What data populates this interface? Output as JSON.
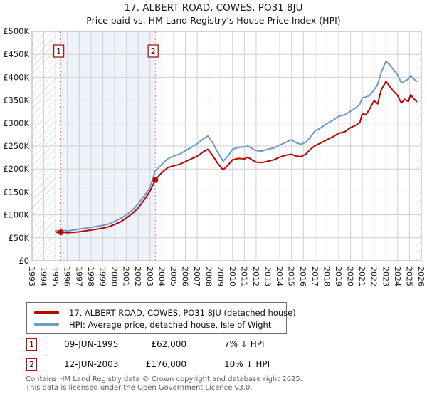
{
  "header": {
    "title": "17, ALBERT ROAD, COWES, PO31 8JU",
    "subtitle": "Price paid vs. HM Land Registry's House Price Index (HPI)"
  },
  "chart_data": {
    "type": "line",
    "title": "17, ALBERT ROAD, COWES, PO31 8JU",
    "subtitle": "Price paid vs. HM Land Registry's House Price Index (HPI)",
    "grid": true,
    "legend_position": "bottom",
    "x_axis": {
      "min": 1993,
      "max": 2026,
      "ticks": [
        1993,
        1994,
        1995,
        1996,
        1997,
        1998,
        1999,
        2000,
        2001,
        2002,
        2003,
        2004,
        2005,
        2006,
        2007,
        2008,
        2009,
        2010,
        2011,
        2012,
        2013,
        2014,
        2015,
        2016,
        2017,
        2018,
        2019,
        2020,
        2021,
        2022,
        2023,
        2024,
        2025,
        2026
      ]
    },
    "y_axis": {
      "min": 0,
      "max": 500000,
      "ticks": [
        {
          "value": 0,
          "label": "£0"
        },
        {
          "value": 50000,
          "label": "£50K"
        },
        {
          "value": 100000,
          "label": "£100K"
        },
        {
          "value": 150000,
          "label": "£150K"
        },
        {
          "value": 200000,
          "label": "£200K"
        },
        {
          "value": 250000,
          "label": "£250K"
        },
        {
          "value": 300000,
          "label": "£300K"
        },
        {
          "value": 350000,
          "label": "£350K"
        },
        {
          "value": 400000,
          "label": "£400K"
        },
        {
          "value": 450000,
          "label": "£450K"
        },
        {
          "value": 500000,
          "label": "£500K"
        }
      ]
    },
    "data_start_year": 1995.0,
    "data_end_year": 2025.6,
    "shaded_region": [
      1995.45,
      2003.45
    ],
    "x": [
      1995.0,
      1995.25,
      1995.45,
      1995.75,
      1996.0,
      1996.5,
      1997.0,
      1997.5,
      1998.0,
      1998.5,
      1999.0,
      1999.5,
      2000.0,
      2000.5,
      2001.0,
      2001.5,
      2002.0,
      2002.5,
      2003.0,
      2003.45,
      2004.0,
      2004.5,
      2005.0,
      2005.5,
      2006.0,
      2006.5,
      2007.0,
      2007.5,
      2007.9,
      2008.3,
      2008.7,
      2009.2,
      2009.6,
      2010.0,
      2010.5,
      2011.0,
      2011.3,
      2011.7,
      2012.0,
      2012.5,
      2013.0,
      2013.5,
      2014.0,
      2014.5,
      2015.0,
      2015.4,
      2015.8,
      2016.2,
      2016.6,
      2017.0,
      2017.5,
      2018.0,
      2018.5,
      2019.0,
      2019.5,
      2020.0,
      2020.5,
      2020.8,
      2021.0,
      2021.3,
      2021.6,
      2022.0,
      2022.3,
      2022.6,
      2023.0,
      2023.3,
      2023.6,
      2024.0,
      2024.3,
      2024.6,
      2024.9,
      2025.1,
      2025.3,
      2025.6
    ],
    "series": [
      {
        "name": "17, ALBERT ROAD, COWES, PO31 8JU (detached house)",
        "color": "#c00000",
        "values_k": [
          63,
          61,
          62,
          62,
          61,
          62,
          63,
          65,
          67,
          69,
          71,
          74,
          79,
          85,
          93,
          103,
          115,
          132,
          152,
          176,
          192,
          203,
          207,
          210,
          216,
          222,
          228,
          237,
          243,
          230,
          214,
          198,
          208,
          220,
          223,
          222,
          226,
          219,
          215,
          214,
          217,
          220,
          226,
          230,
          232,
          228,
          227,
          232,
          243,
          251,
          257,
          264,
          270,
          278,
          281,
          290,
          296,
          302,
          321,
          318,
          330,
          349,
          342,
          372,
          391,
          381,
          371,
          360,
          344,
          352,
          347,
          362,
          355,
          347
        ]
      },
      {
        "name": "HPI: Average price, detached house, Isle of Wight",
        "color": "#6e9bc8",
        "values_k": [
          66,
          65,
          66,
          66,
          65,
          67,
          69,
          71,
          73,
          75,
          77,
          80,
          86,
          92,
          100,
          110,
          124,
          141,
          160,
          196,
          210,
          222,
          228,
          232,
          240,
          247,
          255,
          265,
          272,
          258,
          238,
          217,
          228,
          243,
          247,
          248,
          250,
          244,
          240,
          239,
          243,
          246,
          252,
          258,
          264,
          257,
          254,
          258,
          270,
          283,
          290,
          299,
          306,
          315,
          318,
          326,
          334,
          342,
          355,
          357,
          360,
          372,
          385,
          410,
          435,
          428,
          418,
          405,
          388,
          392,
          396,
          404,
          398,
          391
        ]
      }
    ],
    "sale_markers": [
      {
        "label": "1",
        "year": 1995.45,
        "price": 62000
      },
      {
        "label": "2",
        "year": 2003.45,
        "price": 176000
      }
    ],
    "colors": {
      "shade": "#eef2fb",
      "gridline": "#cfcfcf",
      "frame": "#ababab",
      "hatch": "#c5c5ce",
      "sale_dashed_line": "#f27979",
      "sale_dot": "#c00000",
      "marker_box_border": "#b01212"
    }
  },
  "legend": {
    "items": [
      {
        "label": "17, ALBERT ROAD, COWES, PO31 8JU (detached house)",
        "color": "#c00000",
        "thickness": 3
      },
      {
        "label": "HPI: Average price, detached house, Isle of Wight",
        "color": "#6e9bc8",
        "thickness": 3
      }
    ]
  },
  "sales": [
    {
      "num": "1",
      "date": "09-JUN-1995",
      "price": "£62,000",
      "vs_hpi": "7% ↓ HPI"
    },
    {
      "num": "2",
      "date": "12-JUN-2003",
      "price": "£176,000",
      "vs_hpi": "10% ↓ HPI"
    }
  ],
  "footer": {
    "line1": "Contains HM Land Registry data © Crown copyright and database right 2025.",
    "line2": "This data is licensed under the Open Government Licence v3.0."
  }
}
